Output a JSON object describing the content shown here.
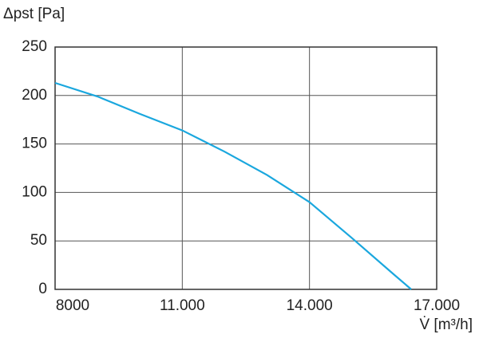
{
  "chart_data": {
    "type": "line",
    "y_label": "Δpst [Pa]",
    "x_label": "V̇ [m³/h]",
    "x": [
      8000,
      9000,
      10000,
      11000,
      12000,
      13000,
      14000,
      15000,
      16000,
      16400
    ],
    "series": [
      {
        "color": "#1aa7de",
        "values": [
          213,
          199,
          181,
          164,
          142,
          118,
          90,
          53,
          15,
          0
        ]
      }
    ],
    "xlim": [
      8000,
      17000
    ],
    "xticks": [
      8000,
      {
        "value": 11000,
        "label": "11.000"
      },
      {
        "value": 14000,
        "label": "14.000"
      },
      {
        "value": 17000,
        "label": "17.000"
      }
    ],
    "ylim": [
      0,
      250
    ],
    "yticks": [
      0,
      50,
      100,
      150,
      200,
      250
    ],
    "grid": true
  }
}
